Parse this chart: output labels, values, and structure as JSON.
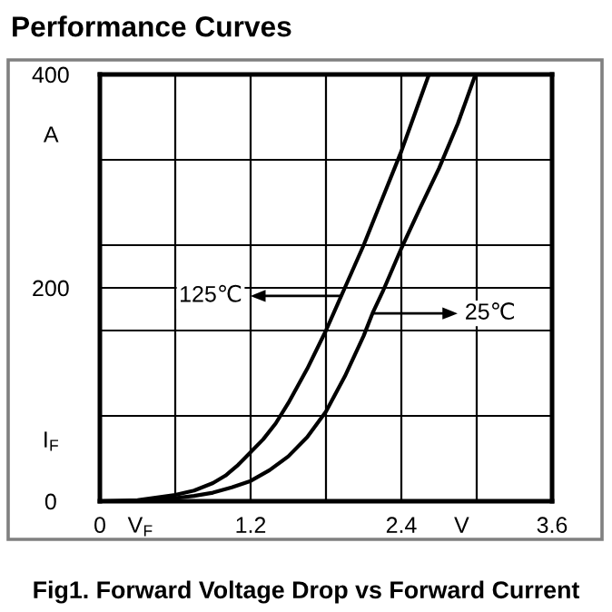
{
  "chart_data": {
    "type": "line",
    "title": "Performance Curves",
    "xlabel": "V$_{F}$",
    "ylabel": "I$_{F}$",
    "annotations": [
      "125℃",
      "25℃",
      "A",
      "V",
      "Fig1. Forward Voltage Drop vs Forward Current"
    ],
    "series": [
      {
        "color": "#000000",
        "x": [
          0,
          0.3,
          0.6,
          0.75,
          0.9,
          1.0,
          1.1,
          1.2,
          1.3,
          1.4,
          1.5,
          1.65,
          1.8,
          1.92,
          1.95,
          2.1,
          2.25,
          2.4,
          2.51,
          2.62
        ],
        "values": [
          0,
          1,
          6,
          10,
          17,
          24,
          34,
          46,
          58,
          73,
          92,
          124,
          160,
          192,
          200,
          240,
          284,
          328,
          364,
          400
        ]
      },
      {
        "color": "#000000",
        "x": [
          0,
          0.3,
          0.6,
          0.75,
          0.9,
          1.05,
          1.2,
          1.35,
          1.5,
          1.65,
          1.8,
          1.95,
          2.1,
          2.17,
          2.25,
          2.4,
          2.55,
          2.7,
          2.85,
          2.99
        ],
        "values": [
          0,
          0,
          3,
          5,
          8,
          13,
          19,
          29,
          42,
          60,
          84,
          117,
          155,
          176,
          196,
          237,
          275,
          312,
          354,
          400
        ]
      }
    ],
    "xlim": [
      0,
      3.6
    ],
    "ylim": [
      0,
      400
    ],
    "xticks": [
      0,
      {
        "value": 0.6,
        "label": null
      },
      1.2,
      {
        "value": 1.8,
        "label": null
      },
      2.4,
      {
        "value": 3.0,
        "label": null
      },
      3.6
    ],
    "yticks": [
      0,
      {
        "value": 80,
        "label": null
      },
      {
        "value": 160,
        "label": null
      },
      200,
      {
        "value": 240,
        "label": null
      },
      {
        "value": 320,
        "label": null
      },
      400
    ],
    "grid": true
  }
}
